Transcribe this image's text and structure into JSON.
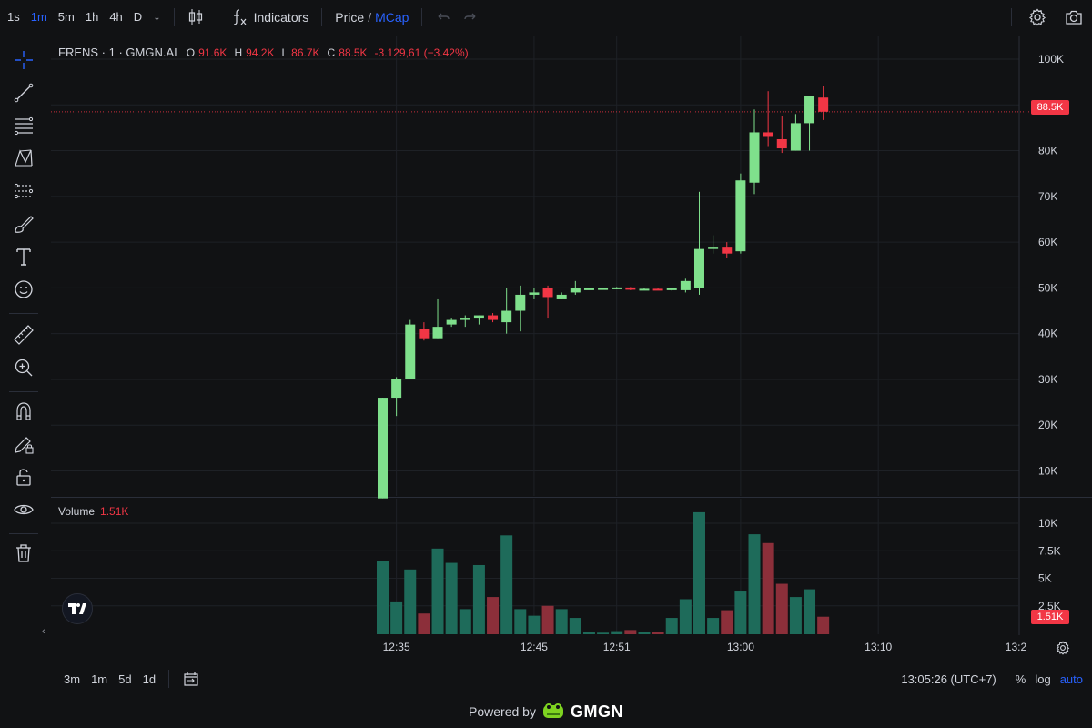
{
  "toolbar": {
    "timeframes": [
      "1s",
      "1m",
      "5m",
      "1h",
      "4h",
      "D"
    ],
    "active_timeframe": "1m",
    "indicators_label": "Indicators",
    "price_label": "Price",
    "slash": "/",
    "mcap_label": "MCap"
  },
  "legend": {
    "symbol": "FRENS · 1 · GMGN.AI",
    "o_key": "O",
    "o_val": "91.6K",
    "h_key": "H",
    "h_val": "94.2K",
    "l_key": "L",
    "l_val": "86.7K",
    "c_key": "C",
    "c_val": "88.5K",
    "change": "-3.129,61 (−3.42%)"
  },
  "volume_legend": {
    "label": "Volume",
    "value": "1.51K"
  },
  "price_tag": "88.5K",
  "volume_tag": "1.51K",
  "bottom": {
    "ranges": [
      "3m",
      "1m",
      "5d",
      "1d"
    ],
    "clock": "13:05:26 (UTC+7)",
    "percent": "%",
    "log": "log",
    "auto": "auto"
  },
  "powered": {
    "text": "Powered by",
    "brand": "GMGN"
  },
  "colors": {
    "up": "#7fe08c",
    "down": "#f23645",
    "vol_up": "#1e6b5a",
    "vol_down": "#8c2f3a",
    "accent": "#2962ff",
    "background": "#111214"
  },
  "chart_data": {
    "type": "candlestick",
    "price_axis": {
      "ticks": [
        "100K",
        "90K",
        "80K",
        "70K",
        "60K",
        "50K",
        "40K",
        "30K",
        "20K",
        "10K"
      ],
      "values": [
        100000,
        90000,
        80000,
        70000,
        60000,
        50000,
        40000,
        30000,
        20000,
        10000
      ]
    },
    "volume_axis": {
      "ticks": [
        "10K",
        "7.5K",
        "5K",
        "2.5K"
      ],
      "values": [
        10000,
        7500,
        5000,
        2500
      ]
    },
    "time_axis": [
      {
        "label": "12:35",
        "index": 1
      },
      {
        "label": "12:45",
        "index": 11
      },
      {
        "label": "12:51",
        "index": 17
      },
      {
        "label": "13:00",
        "index": 26
      },
      {
        "label": "13:10",
        "index": 36
      },
      {
        "label": "13:2",
        "index": 46
      }
    ],
    "candles": [
      {
        "o": 4000,
        "h": 26000,
        "l": 4000,
        "c": 26000,
        "v": 6600
      },
      {
        "o": 26000,
        "h": 30500,
        "l": 22000,
        "c": 30000,
        "v": 2900
      },
      {
        "o": 30000,
        "h": 43000,
        "l": 30000,
        "c": 42000,
        "v": 5800
      },
      {
        "o": 41000,
        "h": 42500,
        "l": 38500,
        "c": 39000,
        "v": 1800
      },
      {
        "o": 39000,
        "h": 47500,
        "l": 39000,
        "c": 41500,
        "v": 7700
      },
      {
        "o": 42000,
        "h": 43500,
        "l": 41500,
        "c": 43000,
        "v": 6400
      },
      {
        "o": 43000,
        "h": 44000,
        "l": 41500,
        "c": 43500,
        "v": 2200
      },
      {
        "o": 43500,
        "h": 44000,
        "l": 42000,
        "c": 44000,
        "v": 6200
      },
      {
        "o": 44000,
        "h": 44500,
        "l": 42500,
        "c": 43000,
        "v": 3300
      },
      {
        "o": 42500,
        "h": 50000,
        "l": 40000,
        "c": 45000,
        "v": 8900
      },
      {
        "o": 45000,
        "h": 50500,
        "l": 40500,
        "c": 48500,
        "v": 2200
      },
      {
        "o": 48500,
        "h": 50000,
        "l": 47500,
        "c": 49000,
        "v": 1600
      },
      {
        "o": 50000,
        "h": 50500,
        "l": 43500,
        "c": 48000,
        "v": 2500
      },
      {
        "o": 47500,
        "h": 49000,
        "l": 47500,
        "c": 48500,
        "v": 2200
      },
      {
        "o": 49000,
        "h": 51500,
        "l": 48500,
        "c": 50000,
        "v": 1400
      },
      {
        "o": 49800,
        "h": 50000,
        "l": 49600,
        "c": 49900,
        "v": 80
      },
      {
        "o": 49800,
        "h": 50000,
        "l": 49700,
        "c": 49950,
        "v": 60
      },
      {
        "o": 49900,
        "h": 50200,
        "l": 49700,
        "c": 50100,
        "v": 200
      },
      {
        "o": 50100,
        "h": 50200,
        "l": 49500,
        "c": 49600,
        "v": 300
      },
      {
        "o": 49700,
        "h": 49900,
        "l": 49500,
        "c": 49800,
        "v": 150
      },
      {
        "o": 49800,
        "h": 50000,
        "l": 49600,
        "c": 49600,
        "v": 150
      },
      {
        "o": 49700,
        "h": 50000,
        "l": 49400,
        "c": 49900,
        "v": 1400
      },
      {
        "o": 49500,
        "h": 52000,
        "l": 49000,
        "c": 51500,
        "v": 3100
      },
      {
        "o": 50000,
        "h": 71000,
        "l": 48500,
        "c": 58500,
        "v": 11000
      },
      {
        "o": 58500,
        "h": 61500,
        "l": 57500,
        "c": 59000,
        "v": 1400
      },
      {
        "o": 59000,
        "h": 60000,
        "l": 56500,
        "c": 57500,
        "v": 2100
      },
      {
        "o": 58000,
        "h": 75000,
        "l": 57500,
        "c": 73500,
        "v": 3800
      },
      {
        "o": 73000,
        "h": 89000,
        "l": 70500,
        "c": 84000,
        "v": 9000
      },
      {
        "o": 84000,
        "h": 93000,
        "l": 81000,
        "c": 83000,
        "v": 8200
      },
      {
        "o": 82500,
        "h": 87500,
        "l": 79500,
        "c": 80500,
        "v": 4500
      },
      {
        "o": 80000,
        "h": 88000,
        "l": 80000,
        "c": 86000,
        "v": 3300
      },
      {
        "o": 86000,
        "h": 92000,
        "l": 80000,
        "c": 92000,
        "v": 4000
      },
      {
        "o": 91600,
        "h": 94200,
        "l": 86700,
        "c": 88500,
        "v": 1510
      }
    ],
    "last_price": 88500
  }
}
